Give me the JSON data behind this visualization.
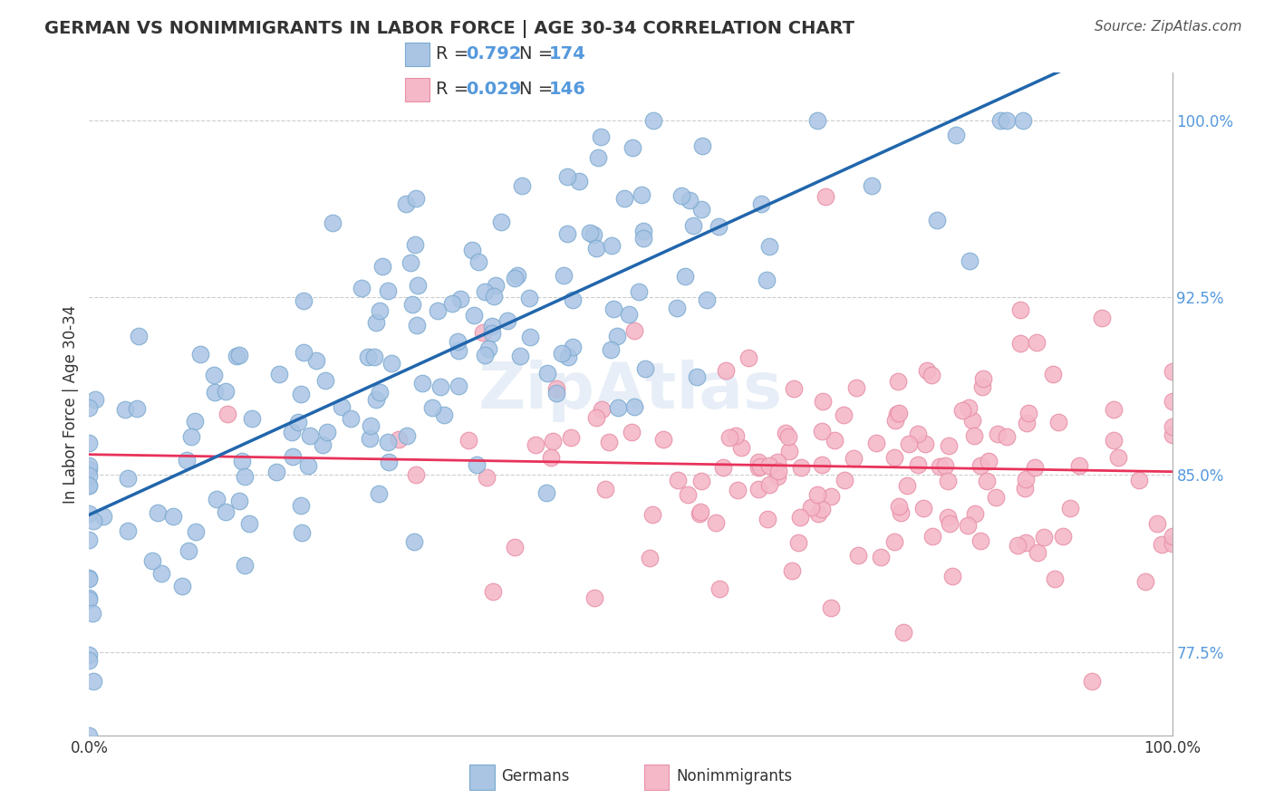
{
  "title": "GERMAN VS NONIMMIGRANTS IN LABOR FORCE | AGE 30-34 CORRELATION CHART",
  "source": "Source: ZipAtlas.com",
  "ylabel": "In Labor Force | Age 30-34",
  "xlim": [
    0.0,
    1.0
  ],
  "ylim": [
    0.74,
    1.02
  ],
  "xtick_labels": [
    "0.0%",
    "100.0%"
  ],
  "ytick_labels": [
    "77.5%",
    "85.0%",
    "92.5%",
    "100.0%"
  ],
  "ytick_positions": [
    0.775,
    0.85,
    0.925,
    1.0
  ],
  "blue_dot_color": "#aac4e4",
  "pink_dot_color": "#f4b8c8",
  "blue_edge_color": "#7aaad0",
  "pink_edge_color": "#e890a8",
  "blue_line_color": "#2166ac",
  "pink_line_color": "#e8325a",
  "blue_R": 0.792,
  "blue_N": 174,
  "pink_R": 0.029,
  "pink_N": 146,
  "watermark": "ZipAtlas",
  "watermark_color": "#d0dff0",
  "background_color": "#ffffff",
  "grid_color": "#cccccc",
  "tick_color": "#5599dd",
  "legend_text_color": "#333333",
  "legend_value_color": "#5599dd",
  "title_fontsize": 14,
  "source_fontsize": 11,
  "tick_fontsize": 12,
  "legend_fontsize": 14
}
